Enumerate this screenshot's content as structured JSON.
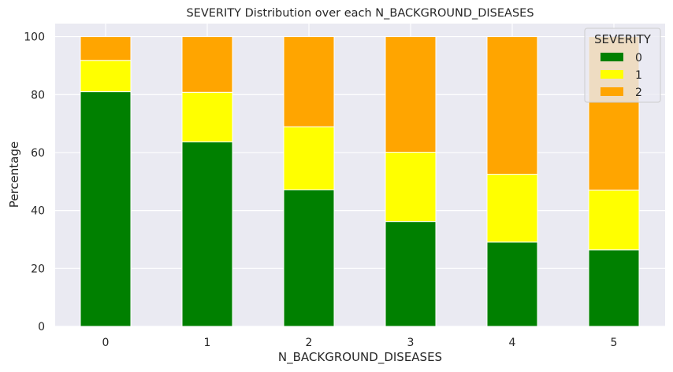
{
  "chart_data": {
    "type": "bar",
    "stacked": true,
    "title": "SEVERITY Distribution over each N_BACKGROUND_DISEASES",
    "xlabel": "N_BACKGROUND_DISEASES",
    "ylabel": "Percentage",
    "categories": [
      "0",
      "1",
      "2",
      "3",
      "4",
      "5"
    ],
    "ylim": [
      0,
      104.5
    ],
    "yticks": [
      0,
      20,
      40,
      60,
      80,
      100
    ],
    "grid": true,
    "legend": {
      "title": "SEVERITY",
      "placement": "top-right"
    },
    "series": [
      {
        "name": "0",
        "color": "#008000",
        "values": [
          81.0,
          63.7,
          47.1,
          36.2,
          29.1,
          26.4
        ]
      },
      {
        "name": "1",
        "color": "#ffff00",
        "values": [
          10.8,
          17.1,
          21.8,
          23.9,
          23.4,
          20.6
        ]
      },
      {
        "name": "2",
        "color": "#ffa500",
        "values": [
          8.2,
          19.2,
          31.1,
          39.9,
          47.5,
          53.0
        ]
      }
    ]
  }
}
